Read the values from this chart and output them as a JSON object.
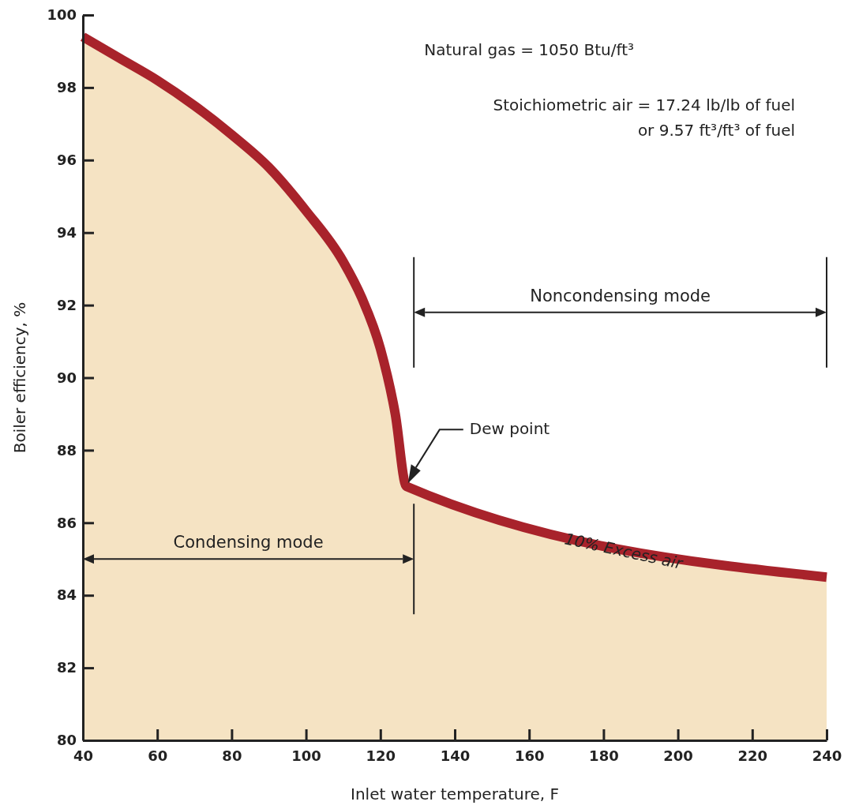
{
  "chart_data": {
    "type": "area",
    "xlabel": "Inlet water temperature, F",
    "ylabel": "Boiler efficiency, %",
    "x": [
      40,
      50,
      60,
      70,
      80,
      90,
      100,
      110,
      115,
      120,
      124,
      127,
      240
    ],
    "series": [
      {
        "name": "10% Excess air",
        "color": "#a8232b",
        "values": [
          99.4,
          98.8,
          98.2,
          97.5,
          96.7,
          95.8,
          94.6,
          93.2,
          92.2,
          90.8,
          89.0,
          87.0,
          84.5
        ]
      }
    ],
    "xlim": [
      40,
      240
    ],
    "xticks": [
      40,
      60,
      80,
      100,
      120,
      140,
      160,
      180,
      200,
      220,
      240
    ],
    "ylim": [
      80,
      100
    ],
    "yticks": [
      80,
      82,
      84,
      86,
      88,
      90,
      92,
      94,
      96,
      98,
      100
    ],
    "grid": false,
    "ref_lines": [
      {
        "axis": "x",
        "value": 129
      },
      {
        "axis": "x",
        "value": 240
      }
    ],
    "annotations": [
      "Natural gas = 1050 Btu/ft³",
      "Stoichiometric air = 17.24 lb/lb of fuel",
      "or 9.57 ft³/ft³ of fuel",
      "Dew point",
      "Condensing mode",
      "Noncondensing mode"
    ]
  }
}
